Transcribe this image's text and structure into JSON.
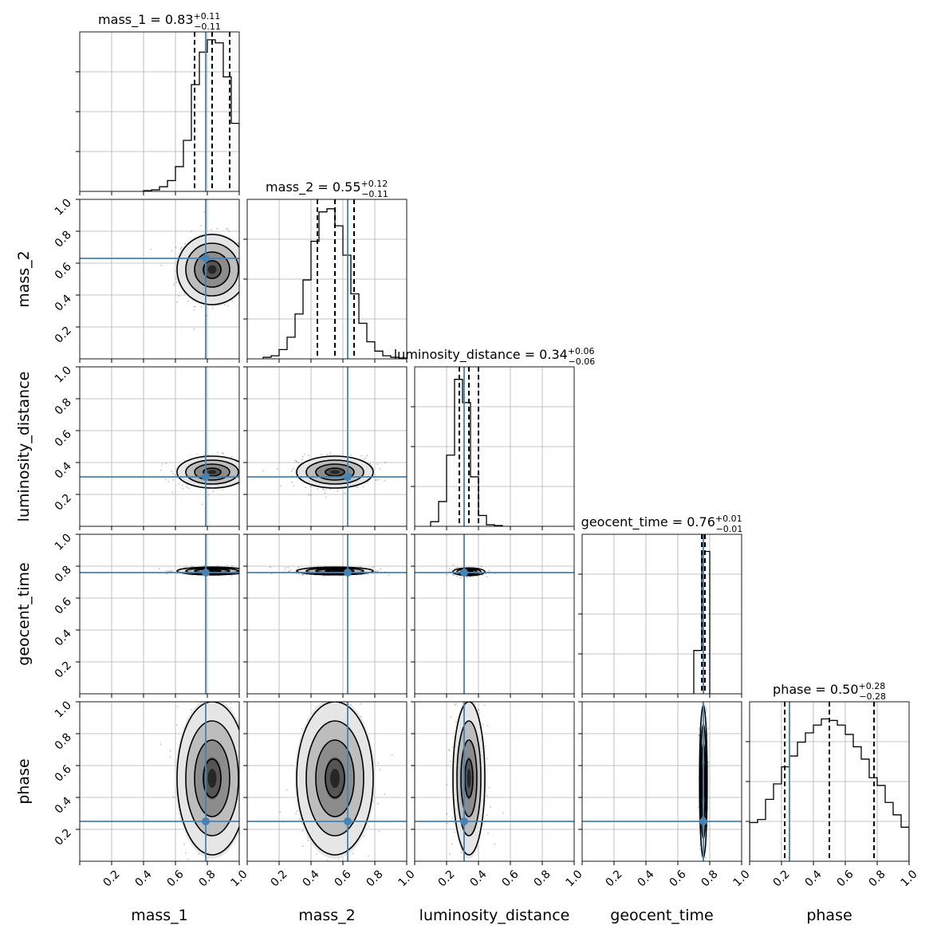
{
  "figure": {
    "type": "corner-plot",
    "truth_color": "#4682b4",
    "contour_color": "#000000",
    "grid": true
  },
  "chart_data": {
    "type": "corner",
    "parameters": [
      "mass_1",
      "mass_2",
      "luminosity_distance",
      "geocent_time",
      "phase"
    ],
    "axis_range": [
      0,
      1
    ],
    "tick_labels": [
      "0.2",
      "0.4",
      "0.6",
      "0.8",
      "1.0"
    ],
    "truths": [
      0.79,
      0.63,
      0.31,
      0.76,
      0.25
    ],
    "titles": [
      {
        "name": "mass_1",
        "median": "0.83",
        "plus": "+0.11",
        "minus": "−0.11",
        "q16": 0.72,
        "q50": 0.83,
        "q84": 0.94
      },
      {
        "name": "mass_2",
        "median": "0.55",
        "plus": "+0.12",
        "minus": "−0.11",
        "q16": 0.44,
        "q50": 0.55,
        "q84": 0.67
      },
      {
        "name": "luminosity_distance",
        "median": "0.34",
        "plus": "+0.06",
        "minus": "−0.06",
        "q16": 0.28,
        "q50": 0.34,
        "q84": 0.4
      },
      {
        "name": "geocent_time",
        "median": "0.76",
        "plus": "+0.01",
        "minus": "−0.01",
        "q16": 0.75,
        "q50": 0.76,
        "q84": 0.77
      },
      {
        "name": "phase",
        "median": "0.50",
        "plus": "+0.28",
        "minus": "−0.28",
        "q16": 0.22,
        "q50": 0.5,
        "q84": 0.78
      }
    ],
    "histograms": [
      {
        "bin_edges": [
          0.4,
          0.45,
          0.5,
          0.55,
          0.6,
          0.65,
          0.7,
          0.75,
          0.8,
          0.85,
          0.9,
          0.95,
          1.0
        ],
        "counts": [
          0.005,
          0.01,
          0.03,
          0.07,
          0.16,
          0.33,
          0.69,
          0.9,
          0.98,
          0.96,
          0.74,
          0.44
        ]
      },
      {
        "bin_edges": [
          0.1,
          0.15,
          0.2,
          0.25,
          0.3,
          0.35,
          0.4,
          0.45,
          0.5,
          0.55,
          0.6,
          0.65,
          0.7,
          0.75,
          0.8,
          0.85,
          0.9,
          0.95,
          1.0
        ],
        "counts": [
          0.01,
          0.02,
          0.06,
          0.14,
          0.29,
          0.51,
          0.76,
          0.95,
          0.97,
          0.86,
          0.67,
          0.42,
          0.23,
          0.11,
          0.05,
          0.02,
          0.01,
          0.005
        ]
      },
      {
        "bin_edges": [
          0.1,
          0.15,
          0.2,
          0.25,
          0.3,
          0.35,
          0.4,
          0.45,
          0.5,
          0.55
        ],
        "counts": [
          0.03,
          0.16,
          0.46,
          0.95,
          0.8,
          0.32,
          0.07,
          0.01,
          0.005
        ]
      },
      {
        "bin_edges": [
          0.7,
          0.75,
          0.8
        ],
        "counts": [
          0.28,
          0.92
        ]
      },
      {
        "bin_edges": [
          0.0,
          0.05,
          0.1,
          0.15,
          0.2,
          0.25,
          0.3,
          0.35,
          0.4,
          0.45,
          0.5,
          0.55,
          0.6,
          0.65,
          0.7,
          0.75,
          0.8,
          0.85,
          0.9,
          0.95,
          1.0
        ],
        "counts": [
          0.25,
          0.27,
          0.4,
          0.5,
          0.61,
          0.68,
          0.77,
          0.83,
          0.88,
          0.92,
          0.91,
          0.88,
          0.82,
          0.74,
          0.66,
          0.54,
          0.49,
          0.38,
          0.3,
          0.22
        ]
      }
    ],
    "posterior_2d": [
      {
        "x": "mass_1",
        "y": "mass_2",
        "mean": [
          0.83,
          0.56
        ],
        "std": [
          0.11,
          0.11
        ]
      },
      {
        "x": "mass_1",
        "y": "luminosity_distance",
        "mean": [
          0.83,
          0.34
        ],
        "std": [
          0.11,
          0.05
        ]
      },
      {
        "x": "mass_2",
        "y": "luminosity_distance",
        "mean": [
          0.55,
          0.34
        ],
        "std": [
          0.12,
          0.05
        ]
      },
      {
        "x": "mass_1",
        "y": "geocent_time",
        "mean": [
          0.83,
          0.77
        ],
        "std": [
          0.11,
          0.012
        ]
      },
      {
        "x": "mass_2",
        "y": "geocent_time",
        "mean": [
          0.55,
          0.77
        ],
        "std": [
          0.12,
          0.012
        ]
      },
      {
        "x": "luminosity_distance",
        "y": "geocent_time",
        "mean": [
          0.34,
          0.765
        ],
        "std": [
          0.05,
          0.012
        ]
      },
      {
        "x": "mass_1",
        "y": "phase",
        "mean": [
          0.83,
          0.52
        ],
        "std": [
          0.11,
          0.24
        ]
      },
      {
        "x": "mass_2",
        "y": "phase",
        "mean": [
          0.55,
          0.52
        ],
        "std": [
          0.12,
          0.24
        ]
      },
      {
        "x": "luminosity_distance",
        "y": "phase",
        "mean": [
          0.34,
          0.52
        ],
        "std": [
          0.05,
          0.24
        ]
      },
      {
        "x": "geocent_time",
        "y": "phase",
        "mean": [
          0.76,
          0.5
        ],
        "std": [
          0.012,
          0.24
        ]
      }
    ]
  }
}
